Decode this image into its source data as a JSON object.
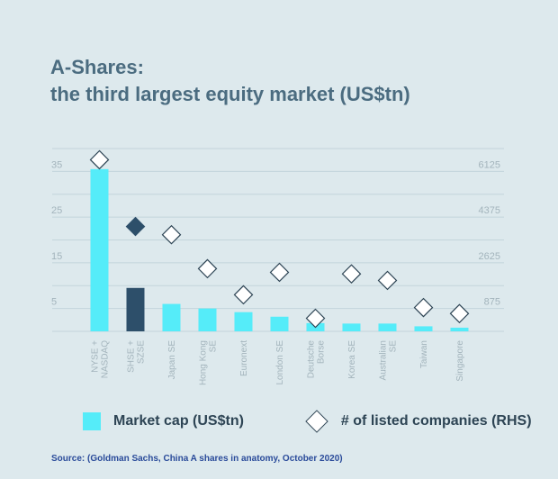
{
  "title_line1": "A-Shares:",
  "title_line2": "the third largest equity market (US$tn)",
  "source": "Source: (Goldman Sachs, China A shares in anatomy, October 2020)",
  "colors": {
    "bar": "#55ecf9",
    "bar_highlight": "#2d4f6a",
    "diamond_highlight": "#2d4f6a",
    "grid": "#c3d4db",
    "axis_text": "#a3b4bc"
  },
  "chart_data": {
    "type": "bar",
    "categories": [
      "NYSE + NASDAQ",
      "SHSE + SZSE",
      "Japan SE",
      "Hong Kong SE",
      "Euronext",
      "London SE",
      "Deutsche Borse",
      "Korea SE",
      "Australian SE",
      "Taiwan",
      "Singapore"
    ],
    "category_lines": [
      [
        "NYSE +",
        "NASDAQ"
      ],
      [
        "SHSE +",
        "SZSE"
      ],
      [
        "Japan SE"
      ],
      [
        "Hong Kong",
        "SE"
      ],
      [
        "Euronext"
      ],
      [
        "London SE"
      ],
      [
        "Deutsche",
        "Borse"
      ],
      [
        "Korea SE"
      ],
      [
        "Australian",
        "SE"
      ],
      [
        "Taiwan"
      ],
      [
        "Singapore"
      ]
    ],
    "series": [
      {
        "name": "Market cap (US$tn)",
        "axis": "left",
        "values": [
          35.5,
          9.5,
          6.0,
          5.0,
          4.2,
          3.2,
          1.8,
          1.7,
          1.7,
          1.1,
          0.8
        ],
        "highlight_index": 1
      },
      {
        "name": "# of listed companies (RHS)",
        "axis": "right",
        "marker": "diamond",
        "values": [
          6570,
          4015,
          3700,
          2400,
          1400,
          2260,
          500,
          2200,
          1950,
          910,
          680
        ],
        "highlight_index": 1
      }
    ],
    "y_left": {
      "ticks": [
        5,
        15,
        25,
        35
      ],
      "range": [
        0,
        40
      ]
    },
    "y_right": {
      "ticks": [
        875,
        2625,
        4375,
        6125
      ],
      "range": [
        0,
        7000
      ]
    },
    "grid": true,
    "legend_placement": "bottom"
  }
}
